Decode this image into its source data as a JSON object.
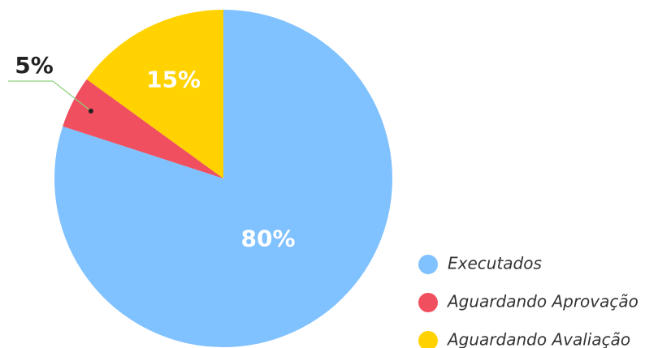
{
  "chart_data": {
    "type": "pie",
    "categories": [
      "Executados",
      "Aguardando Aprovação",
      "Aguardando Avaliação"
    ],
    "values": [
      80,
      5,
      15
    ],
    "value_labels": [
      "80%",
      "5%",
      "15%"
    ],
    "colors": [
      "#80c1ff",
      "#ef4f5e",
      "#ffd200"
    ],
    "legend": "bottom-right"
  }
}
